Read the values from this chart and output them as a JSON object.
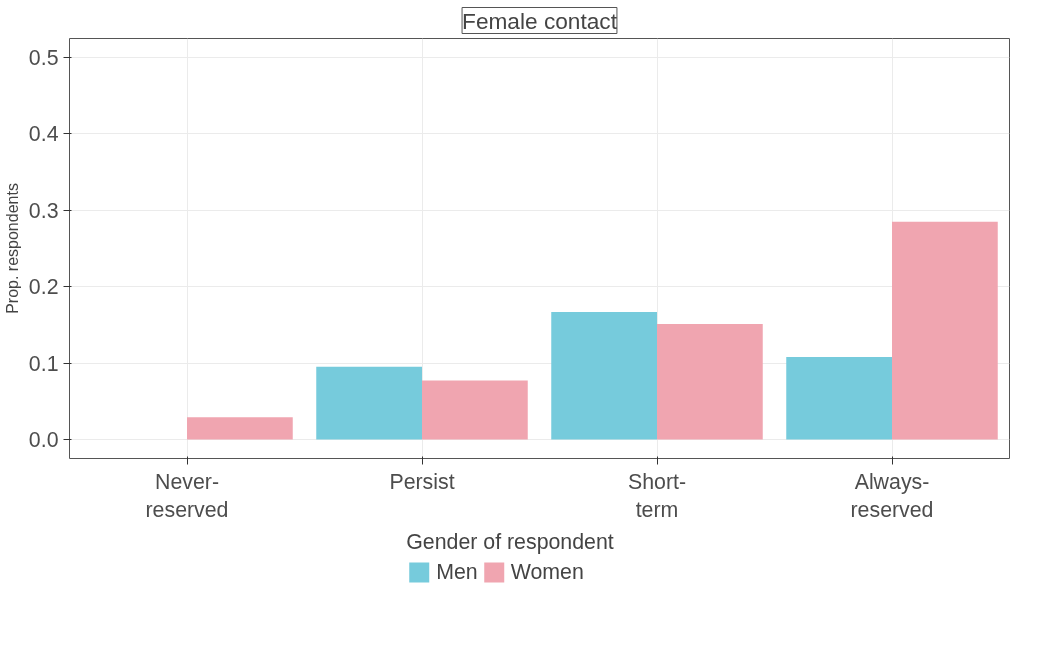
{
  "chart_data": {
    "type": "bar",
    "title": "Female contact",
    "ylabel": "Prop. respondents",
    "legend_title": "Gender of respondent",
    "categories": [
      "Never-\nreserved",
      "Persist",
      "Short-\nterm",
      "Always-\nreserved"
    ],
    "series": [
      {
        "name": "Men",
        "color": "#76cbdc",
        "values": [
          0,
          0.095,
          0.167,
          0.108
        ]
      },
      {
        "name": "Women",
        "color": "#f0a5b0",
        "values": [
          0.029,
          0.077,
          0.151,
          0.285
        ]
      }
    ],
    "ylim": [
      -0.025,
      0.525
    ],
    "yticks": [
      {
        "value": 0,
        "label": "0.0"
      },
      0.1,
      0.2,
      0.3,
      0.4,
      0.5
    ],
    "grid": true,
    "legend": "bottom"
  }
}
